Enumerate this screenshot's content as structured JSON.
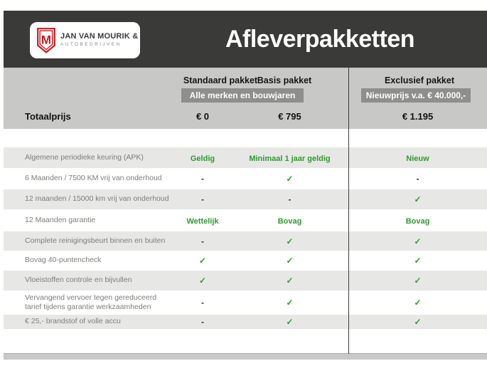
{
  "colors": {
    "header_bg": "#3a3a38",
    "band_bg": "#c8c8c6",
    "banner_bg": "#8e8e8c",
    "stripe_bg": "#e7e7e5",
    "accent_green": "#2e9b2e",
    "brand_red": "#c8191f"
  },
  "header": {
    "title": "Afleverpakketten",
    "logo": {
      "monogram": "M",
      "name": "JAN VAN MOURIK & ZN",
      "subtitle": "AUTOBEDRIJVEN"
    }
  },
  "packages": {
    "columns": {
      "standaard": "Standaard pakket",
      "basis": "Basis pakket",
      "exclusief": "Exclusief pakket"
    },
    "banner_left": "Alle merken en bouwjaren",
    "banner_right": "Nieuwprijs v.a. € 40.000,-",
    "price_row": {
      "label": "Totaalprijs",
      "values": {
        "standaard": "€ 0",
        "basis": "€ 795",
        "exclusief": "€ 1.195"
      }
    }
  },
  "table": {
    "rows": [
      {
        "label": "Algemene periodieke keuring (APK)",
        "values": [
          "Geldig",
          "Minimaal 1 jaar geldig",
          "Nieuw"
        ]
      },
      {
        "label": "6 Maanden / 7500 KM vrij van onderhoud",
        "values": [
          "-",
          "✓",
          "-"
        ]
      },
      {
        "label": "12 maanden / 15000 km vrij van onderhoud",
        "values": [
          "-",
          "-",
          "✓"
        ]
      },
      {
        "label": "12 Maanden  garantie",
        "values": [
          "Wettelijk",
          "Bovag",
          "Bovag"
        ]
      },
      {
        "label": "Complete reinigingsbeurt binnen en buiten",
        "values": [
          "-",
          "✓",
          "✓"
        ]
      },
      {
        "label": "Bovag 40-puntencheck",
        "values": [
          "✓",
          "✓",
          "✓"
        ]
      },
      {
        "label": "Vloeistoffen controle en bijvullen",
        "values": [
          "✓",
          "✓",
          "✓"
        ]
      },
      {
        "label": "Vervangend vervoer tegen gereduceerd tarief tijdens garantie werkzaamheden",
        "values": [
          "-",
          "✓",
          "✓"
        ]
      },
      {
        "label": "€ 25,- brandstof of  volle accu",
        "values": [
          "-",
          "✓",
          "✓"
        ]
      }
    ]
  }
}
